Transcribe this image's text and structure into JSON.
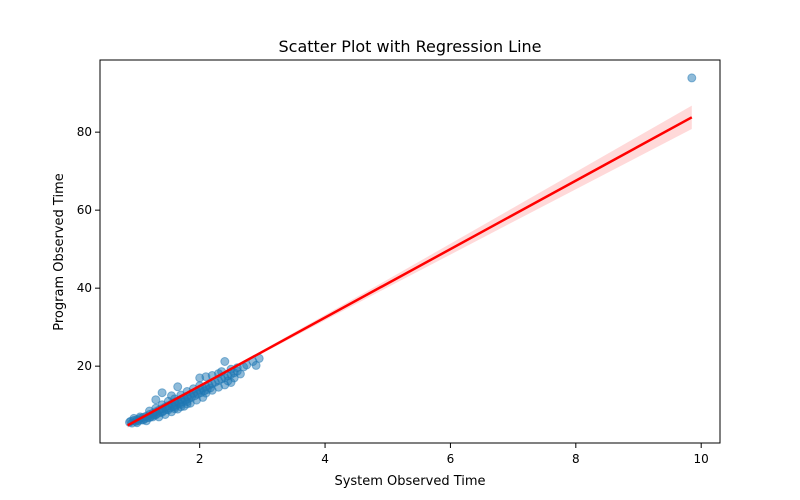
{
  "chart_data": {
    "type": "scatter",
    "title": "Scatter Plot with Regression Line",
    "xlabel": "System Observed Time",
    "ylabel": "Program Observed Time",
    "xlim": [
      0.41,
      10.3
    ],
    "ylim": [
      0.3,
      98.5
    ],
    "x_ticks": [
      {
        "value": 2,
        "label": "2"
      },
      {
        "value": 4,
        "label": "4"
      },
      {
        "value": 6,
        "label": "6"
      },
      {
        "value": 8,
        "label": "8"
      },
      {
        "value": 10,
        "label": "10"
      }
    ],
    "y_ticks": [
      {
        "value": 20,
        "label": "20"
      },
      {
        "value": 40,
        "label": "40"
      },
      {
        "value": 60,
        "label": "60"
      },
      {
        "value": 80,
        "label": "80"
      }
    ],
    "grid": false,
    "points": [
      [
        0.88,
        5.6
      ],
      [
        0.9,
        5.9
      ],
      [
        0.92,
        5.4
      ],
      [
        0.95,
        6.1
      ],
      [
        0.98,
        5.8
      ],
      [
        1.0,
        6.3
      ],
      [
        1.02,
        6.0
      ],
      [
        1.05,
        6.6
      ],
      [
        1.07,
        6.2
      ],
      [
        1.1,
        6.9
      ],
      [
        1.12,
        6.5
      ],
      [
        1.15,
        7.2
      ],
      [
        1.17,
        6.8
      ],
      [
        1.2,
        7.6
      ],
      [
        1.22,
        7.1
      ],
      [
        1.25,
        7.9
      ],
      [
        1.27,
        7.4
      ],
      [
        1.3,
        8.3
      ],
      [
        1.32,
        7.8
      ],
      [
        1.35,
        8.7
      ],
      [
        1.37,
        8.1
      ],
      [
        1.4,
        9.1
      ],
      [
        1.42,
        8.5
      ],
      [
        1.45,
        9.5
      ],
      [
        1.47,
        8.9
      ],
      [
        1.5,
        9.9
      ],
      [
        1.52,
        9.3
      ],
      [
        1.55,
        10.3
      ],
      [
        1.57,
        9.6
      ],
      [
        1.6,
        10.7
      ],
      [
        1.62,
        10.0
      ],
      [
        1.65,
        11.1
      ],
      [
        1.67,
        10.4
      ],
      [
        1.7,
        11.5
      ],
      [
        1.72,
        10.8
      ],
      [
        1.75,
        11.9
      ],
      [
        1.77,
        11.2
      ],
      [
        1.8,
        12.3
      ],
      [
        1.82,
        11.6
      ],
      [
        1.85,
        12.7
      ],
      [
        1.87,
        12.0
      ],
      [
        1.9,
        13.1
      ],
      [
        1.92,
        12.4
      ],
      [
        1.95,
        13.5
      ],
      [
        1.97,
        12.8
      ],
      [
        2.0,
        13.9
      ],
      [
        2.02,
        13.2
      ],
      [
        2.05,
        14.3
      ],
      [
        2.07,
        13.6
      ],
      [
        2.1,
        14.7
      ],
      [
        2.12,
        14.0
      ],
      [
        2.15,
        15.1
      ],
      [
        2.17,
        14.4
      ],
      [
        2.2,
        15.5
      ],
      [
        2.25,
        15.9
      ],
      [
        2.3,
        16.3
      ],
      [
        2.35,
        16.7
      ],
      [
        2.4,
        17.1
      ],
      [
        2.45,
        17.5
      ],
      [
        2.5,
        17.9
      ],
      [
        2.55,
        18.3
      ],
      [
        2.6,
        18.7
      ],
      [
        1.0,
        5.5
      ],
      [
        1.1,
        6.2
      ],
      [
        1.2,
        6.8
      ],
      [
        1.3,
        7.5
      ],
      [
        1.4,
        8.2
      ],
      [
        1.5,
        8.8
      ],
      [
        1.6,
        9.5
      ],
      [
        1.7,
        10.2
      ],
      [
        1.8,
        10.9
      ],
      [
        1.2,
        8.5
      ],
      [
        1.3,
        9.2
      ],
      [
        1.4,
        10.1
      ],
      [
        1.5,
        11.0
      ],
      [
        1.6,
        11.6
      ],
      [
        1.7,
        12.6
      ],
      [
        1.8,
        13.5
      ],
      [
        1.9,
        14.2
      ],
      [
        2.0,
        15.0
      ],
      [
        1.35,
        7.0
      ],
      [
        1.45,
        7.6
      ],
      [
        1.55,
        8.3
      ],
      [
        1.65,
        9.0
      ],
      [
        1.75,
        9.7
      ],
      [
        1.85,
        10.5
      ],
      [
        1.95,
        11.3
      ],
      [
        2.05,
        12.0
      ],
      [
        1.6,
        9.1
      ],
      [
        1.7,
        9.6
      ],
      [
        1.8,
        10.3
      ],
      [
        2.1,
        13.1
      ],
      [
        2.2,
        13.8
      ],
      [
        2.3,
        14.6
      ],
      [
        2.4,
        15.2
      ],
      [
        2.5,
        15.8
      ],
      [
        1.65,
        14.7
      ],
      [
        1.4,
        13.2
      ],
      [
        1.3,
        11.4
      ],
      [
        1.55,
        12.4
      ],
      [
        2.0,
        17.0
      ],
      [
        2.1,
        17.3
      ],
      [
        2.2,
        17.6
      ],
      [
        2.3,
        18.1
      ],
      [
        2.4,
        21.2
      ],
      [
        2.5,
        19.2
      ],
      [
        2.6,
        19.6
      ],
      [
        2.7,
        19.8
      ],
      [
        2.75,
        20.3
      ],
      [
        2.9,
        20.2
      ],
      [
        2.95,
        22.0
      ],
      [
        2.85,
        21.2
      ],
      [
        2.45,
        16.2
      ],
      [
        2.55,
        17.0
      ],
      [
        2.65,
        18.0
      ],
      [
        2.35,
        18.6
      ],
      [
        1.15,
        6.0
      ],
      [
        1.25,
        7.0
      ],
      [
        1.05,
        7.0
      ],
      [
        0.95,
        6.6
      ],
      [
        9.85,
        93.9
      ]
    ],
    "regression": {
      "x": [
        0.85,
        9.85
      ],
      "y": [
        4.8,
        83.8
      ],
      "ci_halfwidth_at_x": [
        {
          "x": 0.85,
          "h": 0.6
        },
        {
          "x": 2.0,
          "h": 0.3
        },
        {
          "x": 3.0,
          "h": 0.4
        },
        {
          "x": 5.0,
          "h": 1.0
        },
        {
          "x": 7.0,
          "h": 1.8
        },
        {
          "x": 9.85,
          "h": 3.0
        }
      ]
    },
    "colors": {
      "points": "#1f77b4",
      "regression_line": "#ff0000",
      "confidence_band": "#ff0000"
    }
  }
}
